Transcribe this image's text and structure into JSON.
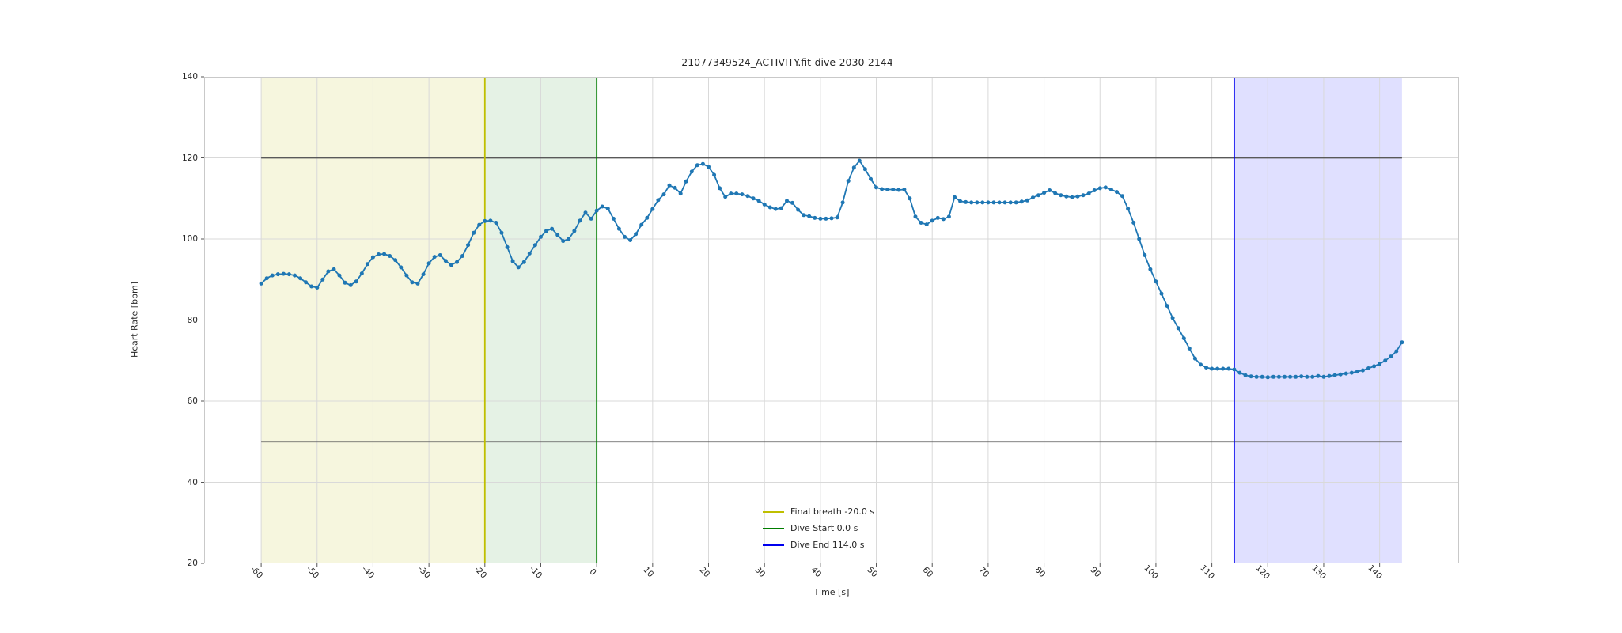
{
  "chart_data": {
    "type": "line",
    "title": "21077349524_ACTIVITY.fit-dive-2030-2144",
    "xlabel": "Time [s]",
    "ylabel": "Heart Rate [bpm]",
    "xlim": [
      -70.2,
      154.2
    ],
    "ylim": [
      20,
      140
    ],
    "xticks": [
      -60,
      -50,
      -40,
      -30,
      -20,
      -10,
      0,
      10,
      20,
      30,
      40,
      50,
      60,
      70,
      80,
      90,
      100,
      110,
      120,
      130,
      140
    ],
    "yticks": [
      20,
      40,
      60,
      80,
      100,
      120,
      140
    ],
    "grid": true,
    "grid_color": "#d9d9d9",
    "spine_color": "#c9c9c9",
    "tick_color": "#555555",
    "background": "#ffffff",
    "legend_position": "lower center",
    "series": [
      {
        "name": "heart_rate",
        "color": "#1f77b4",
        "marker": "circle",
        "marker_size": 5,
        "t_start": -60,
        "dt": 1,
        "values": [
          89,
          90.3,
          91,
          91.3,
          91.4,
          91.3,
          91,
          90.3,
          89.3,
          88.3,
          88,
          90,
          92,
          92.5,
          91,
          89.2,
          88.6,
          89.5,
          91.5,
          93.8,
          95.5,
          96.2,
          96.3,
          95.8,
          94.8,
          93,
          91,
          89.3,
          89,
          91.3,
          94,
          95.6,
          96,
          94.6,
          93.6,
          94.3,
          95.8,
          98.5,
          101.5,
          103.5,
          104.4,
          104.5,
          104,
          101.5,
          98,
          94.5,
          93,
          94.3,
          96.4,
          98.5,
          100.5,
          102,
          102.5,
          101,
          99.5,
          100,
          102,
          104.5,
          106.5,
          105,
          107,
          108,
          107.5,
          105,
          102.5,
          100.5,
          99.7,
          101.2,
          103.5,
          105.2,
          107.4,
          109.6,
          111,
          113.2,
          112.6,
          111.2,
          114.2,
          116.6,
          118.2,
          118.5,
          117.8,
          115.8,
          112.5,
          110.4,
          111.2,
          111.2,
          111,
          110.6,
          110,
          109.4,
          108.5,
          107.8,
          107.4,
          107.6,
          109.4,
          108.9,
          107.2,
          105.9,
          105.6,
          105.2,
          105,
          105,
          105.1,
          105.3,
          109,
          114.3,
          117.6,
          119.3,
          117.2,
          114.8,
          112.7,
          112.3,
          112.2,
          112.2,
          112.1,
          112.2,
          110,
          105.5,
          104,
          103.6,
          104.5,
          105.2,
          104.9,
          105.5,
          110.3,
          109.3,
          109.1,
          109,
          109,
          109,
          109,
          109,
          109,
          109,
          109,
          109,
          109.2,
          109.5,
          110.2,
          110.8,
          111.4,
          112,
          111.3,
          110.8,
          110.5,
          110.3,
          110.5,
          110.8,
          111.2,
          112,
          112.5,
          112.7,
          112.2,
          111.6,
          110.6,
          107.5,
          104,
          100,
          96,
          92.5,
          89.5,
          86.5,
          83.5,
          80.5,
          78,
          75.5,
          73,
          70.5,
          69,
          68.3,
          68,
          68,
          68,
          68,
          67.8,
          67,
          66.4,
          66.1,
          66,
          66,
          65.9,
          66,
          66,
          66,
          66,
          66,
          66.1,
          66,
          66,
          66.2,
          66,
          66.2,
          66.4,
          66.6,
          66.8,
          67,
          67.3,
          67.6,
          68.1,
          68.6,
          69.2,
          70,
          71,
          72.3,
          74.5
        ]
      }
    ],
    "hlines": [
      {
        "y": 120,
        "x0": -60,
        "x1": 144,
        "color": "#595959"
      },
      {
        "y": 50,
        "x0": -60,
        "x1": 144,
        "color": "#595959"
      }
    ],
    "vlines": [
      {
        "x": -20,
        "color": "#bfbf00",
        "label": "Final breath -20.0 s"
      },
      {
        "x": 0,
        "color": "#007d00",
        "label": "Dive Start 0.0 s"
      },
      {
        "x": 114,
        "color": "#0000ee",
        "label": "Dive End 114.0 s"
      }
    ],
    "spans": [
      {
        "x0": -60,
        "x1": -20,
        "color": "rgba(189,189,0,0.13)",
        "name": "pre-breathe-span"
      },
      {
        "x0": -20,
        "x1": 0,
        "color": "rgba(0,128,0,0.10)",
        "name": "final-breath-span"
      },
      {
        "x0": 114,
        "x1": 144,
        "color": "rgba(0,0,255,0.12)",
        "name": "post-dive-span"
      }
    ]
  }
}
